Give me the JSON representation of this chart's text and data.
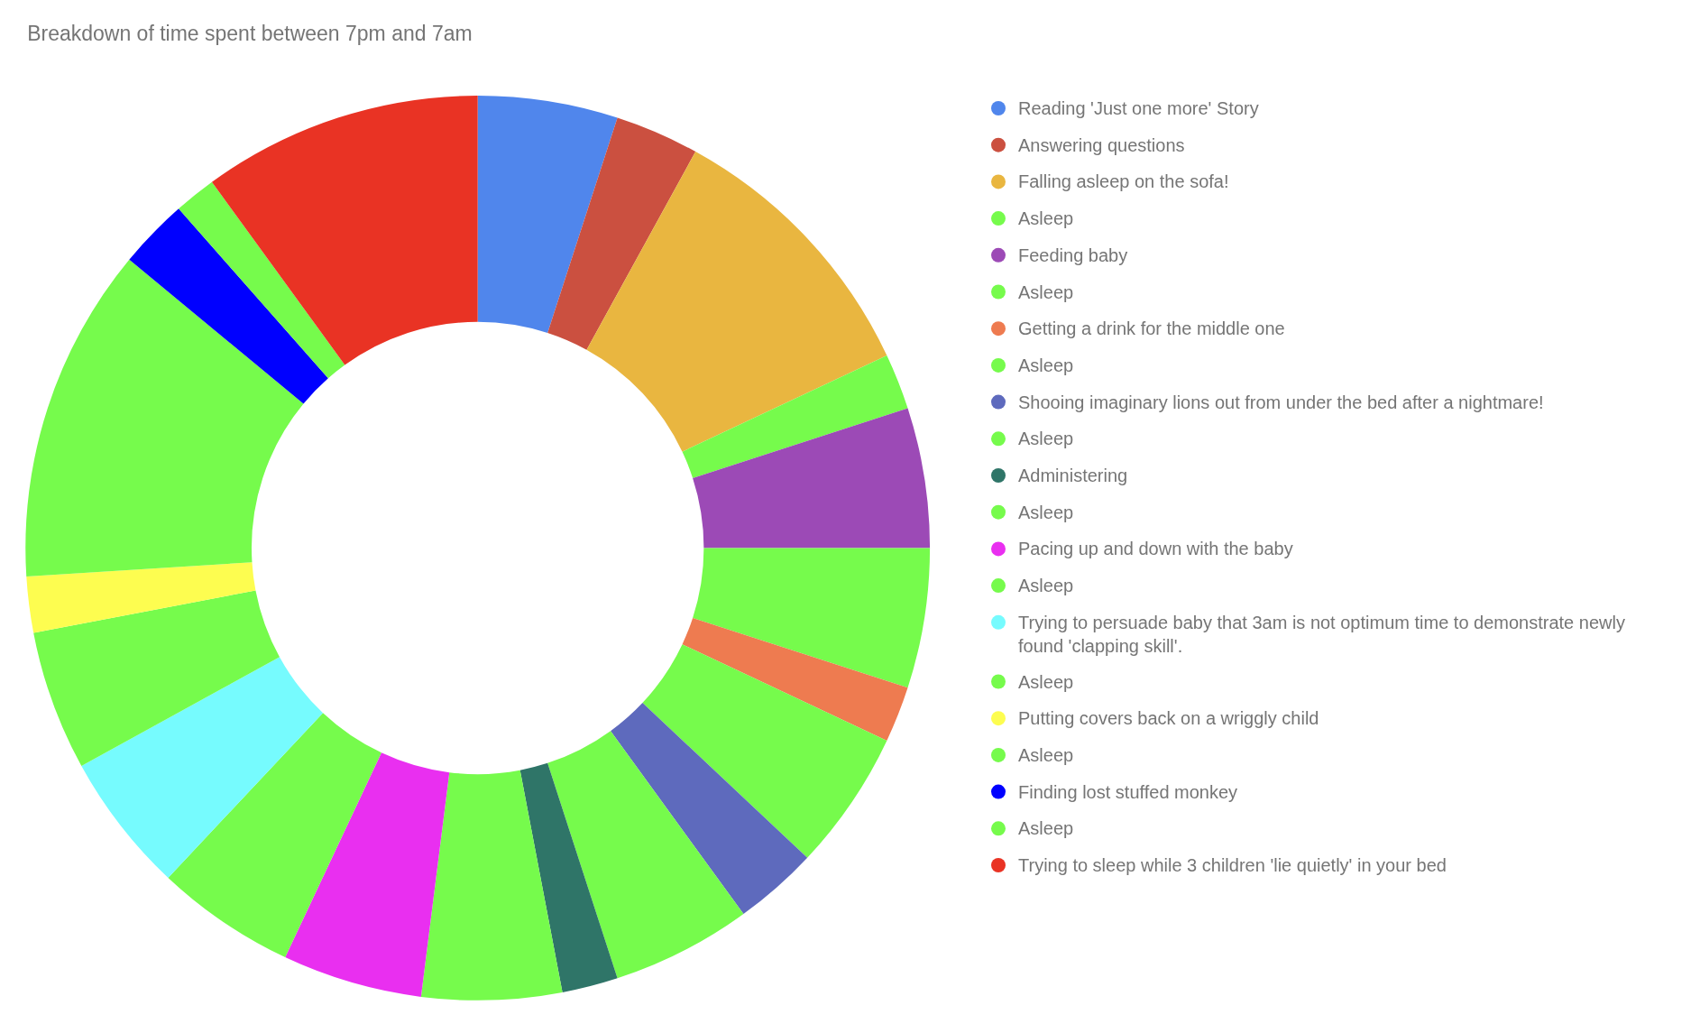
{
  "chart_data": {
    "type": "donut",
    "title": "Breakdown of time spent between 7pm and 7am",
    "categories": [
      "Reading 'Just one more' Story",
      "Answering questions",
      "Falling asleep on the sofa!",
      "Asleep",
      "Feeding baby",
      "Asleep",
      "Getting a drink for the middle one",
      "Asleep",
      "Shooing imaginary lions out from under the bed after a nightmare!",
      "Asleep",
      "Administering",
      "Asleep",
      "Pacing up and down with the baby",
      "Asleep",
      "Trying to persuade baby that 3am is not optimum time to demonstrate newly found 'clapping skill'.",
      "Asleep",
      "Putting covers back on a wriggly child",
      "Asleep",
      "Finding lost stuffed monkey",
      "Asleep",
      "Trying to sleep while 3 children 'lie quietly' in your bed"
    ],
    "values": [
      5,
      3,
      10,
      2,
      5,
      5,
      2,
      5,
      3,
      5,
      2,
      5,
      5,
      5,
      5,
      5,
      2,
      12,
      2.5,
      1.5,
      10
    ],
    "colors": [
      "#5086ec",
      "#cb5040",
      "#e9b640",
      "#76fb4c",
      "#9c4ab6",
      "#76fb4c",
      "#ee7b50",
      "#76fb4c",
      "#5e6abd",
      "#76fb4c",
      "#2f7568",
      "#76fb4c",
      "#e92ff0",
      "#76fb4c",
      "#76fbfe",
      "#76fb4c",
      "#fdfd50",
      "#76fb4c",
      "#0000ff",
      "#76fb4c",
      "#e93324"
    ],
    "legend": "right"
  }
}
